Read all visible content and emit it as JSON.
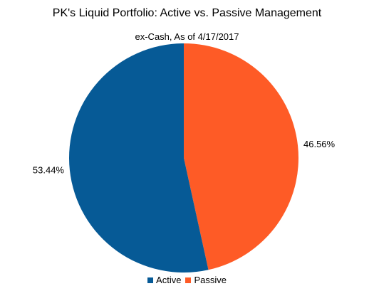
{
  "chart_data": {
    "type": "pie",
    "title": "PK's Liquid Portfolio: Active vs. Passive Management",
    "subtitle": "ex-Cash, As of 4/17/2017",
    "slices": [
      {
        "name": "Active",
        "value": 53.44,
        "label": "53.44%",
        "color": "#065a96"
      },
      {
        "name": "Passive",
        "value": 46.56,
        "label": "46.56%",
        "color": "#fe5b26"
      }
    ],
    "legend_position": "bottom"
  }
}
